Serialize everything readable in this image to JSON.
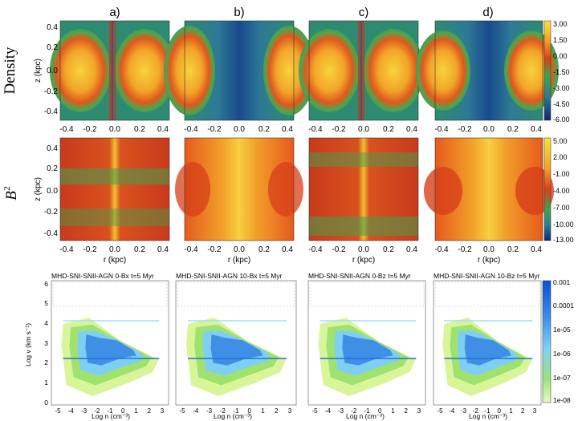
{
  "panel_letters": [
    "a)",
    "b)",
    "c)",
    "d)"
  ],
  "row_labels": {
    "density": "Density",
    "b2": "B",
    "b2_sup": "2"
  },
  "axes": {
    "z_label": "z (kpc)",
    "r_label": "r (kpc)",
    "x_ticks": [
      "-0.4",
      "-0.2",
      "0.0",
      "0.2",
      "0.4"
    ],
    "z_ticks": [
      "0.4",
      "0.2",
      "0.0",
      "-0.2",
      "-0.4"
    ],
    "bottom_x_label": "Log n (cm⁻³)",
    "bottom_y_label": "Log v (km s⁻¹)"
  },
  "colorbars": {
    "density": [
      "3.00",
      "1.50",
      "0.00",
      "-1.50",
      "-3.00",
      "-4.50",
      "-6.00"
    ],
    "b2": [
      "5.00",
      "2.00",
      "-1.00",
      "-4.00",
      "-7.00",
      "-10.00",
      "-13.00"
    ],
    "phase": [
      "0.001",
      "0.0001",
      "1e-05",
      "1e-06",
      "1e-07",
      "1e-08"
    ]
  },
  "phase_titles": [
    "MHD-SNI-SNII-AGN 0-Bx   t=5 Myr",
    "MHD-SNI-SNII-AGN 10-Bx   t=5 Myr",
    "MHD-SNI-SNII-AGN 0-Bz   t=5 Myr",
    "MHD-SNI-SNII-AGN 10-Bz   t=5 Myr"
  ],
  "phase_x_ticks": [
    "-5",
    "-4",
    "-3",
    "-2",
    "-1",
    "0",
    "1",
    "2",
    "3"
  ],
  "phase_y_ticks": [
    "6",
    "5",
    "4",
    "3",
    "2",
    "1",
    "0"
  ],
  "colors": {
    "yellow": "#f4c430",
    "orange": "#e8781e",
    "red": "#c9301a",
    "green": "#3aa05a",
    "teal": "#2e7d8a",
    "blue": "#1d4fa0",
    "light_green": "#b8f07a",
    "light_blue": "#7cc8ff",
    "deep_blue": "#1060d0"
  }
}
